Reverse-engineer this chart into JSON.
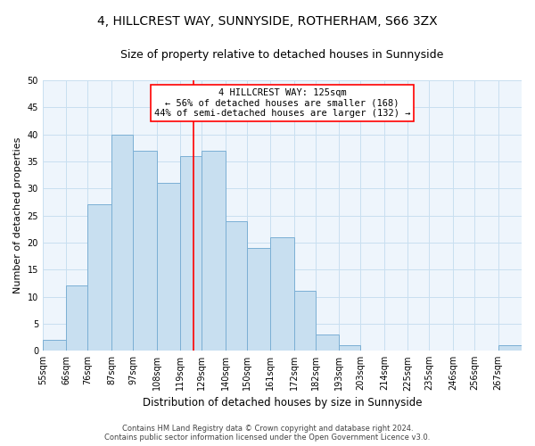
{
  "title": "4, HILLCREST WAY, SUNNYSIDE, ROTHERHAM, S66 3ZX",
  "subtitle": "Size of property relative to detached houses in Sunnyside",
  "xlabel": "Distribution of detached houses by size in Sunnyside",
  "ylabel": "Number of detached properties",
  "bin_edges": [
    55,
    66,
    76,
    87,
    97,
    108,
    119,
    129,
    140,
    150,
    161,
    172,
    182,
    193,
    203,
    214,
    225,
    235,
    246,
    256,
    267,
    278
  ],
  "bin_labels": [
    "55sqm",
    "66sqm",
    "76sqm",
    "87sqm",
    "97sqm",
    "108sqm",
    "119sqm",
    "129sqm",
    "140sqm",
    "150sqm",
    "161sqm",
    "172sqm",
    "182sqm",
    "193sqm",
    "203sqm",
    "214sqm",
    "225sqm",
    "235sqm",
    "246sqm",
    "256sqm",
    "267sqm"
  ],
  "counts": [
    2,
    12,
    27,
    40,
    37,
    31,
    36,
    37,
    24,
    19,
    21,
    11,
    3,
    1,
    0,
    0,
    0,
    0,
    0,
    0,
    1
  ],
  "bar_color": "#c8dff0",
  "bar_edge_color": "#7bafd4",
  "vline_x": 125,
  "vline_color": "red",
  "ylim": [
    0,
    50
  ],
  "yticks": [
    0,
    5,
    10,
    15,
    20,
    25,
    30,
    35,
    40,
    45,
    50
  ],
  "annotation_title": "4 HILLCREST WAY: 125sqm",
  "annotation_line1": "← 56% of detached houses are smaller (168)",
  "annotation_line2": "44% of semi-detached houses are larger (132) →",
  "footer_line1": "Contains HM Land Registry data © Crown copyright and database right 2024.",
  "footer_line2": "Contains public sector information licensed under the Open Government Licence v3.0.",
  "title_fontsize": 10,
  "subtitle_fontsize": 9,
  "xlabel_fontsize": 8.5,
  "ylabel_fontsize": 8,
  "tick_fontsize": 7,
  "annotation_fontsize": 7.5,
  "footer_fontsize": 6,
  "grid_color": "#c8dff0",
  "background_color": "#eef5fc"
}
